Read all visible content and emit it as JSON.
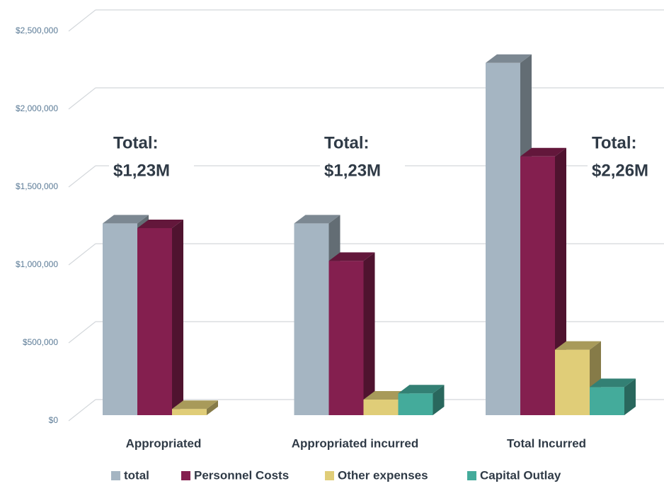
{
  "chart_data": {
    "type": "bar3d",
    "categories": [
      "Appropriated",
      "Appropriated incurred",
      "Total Incurred"
    ],
    "series": [
      {
        "name": "total",
        "color": "#a5b5c2",
        "values": [
          1230000,
          1230000,
          2260000
        ]
      },
      {
        "name": "Personnel Costs",
        "color": "#841f4f",
        "values": [
          1200000,
          990000,
          1660000
        ]
      },
      {
        "name": "Other expenses",
        "color": "#e0cd78",
        "values": [
          40000,
          100000,
          420000
        ]
      },
      {
        "name": "Capital Outlay",
        "color": "#44ab9b",
        "values": [
          null,
          140000,
          180000
        ]
      }
    ],
    "ylim": [
      0,
      2500000
    ],
    "yticks": [
      {
        "value": 0,
        "label": "$0"
      },
      {
        "value": 500000,
        "label": "$500,000"
      },
      {
        "value": 1000000,
        "label": "$1,000,000"
      },
      {
        "value": 1500000,
        "label": "$1,500,000"
      },
      {
        "value": 2000000,
        "label": "$2,000,000"
      },
      {
        "value": 2500000,
        "label": "$2,500,000"
      }
    ],
    "grid": true,
    "legend": "bottom",
    "annotations": [
      {
        "lines": [
          "Total:",
          "$1,23M"
        ]
      },
      {
        "lines": [
          "Total:",
          "$1,23M"
        ]
      },
      {
        "lines": [
          "Total:",
          "$2,26M"
        ]
      }
    ]
  }
}
